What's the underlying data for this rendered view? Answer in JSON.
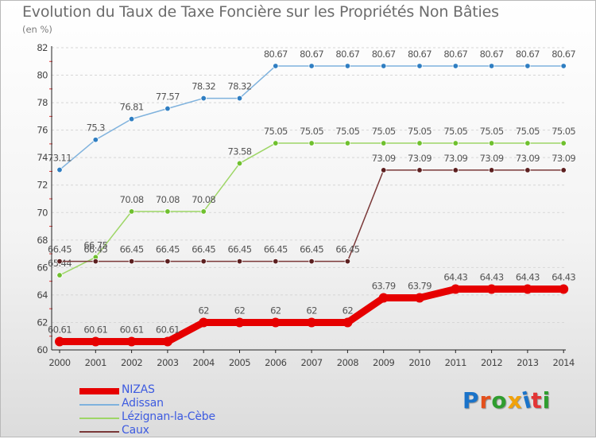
{
  "title": "Evolution du Taux de Taxe Foncière sur les Propriétés Non Bâties",
  "unit_label": "(en %)",
  "logo": {
    "text": "Proxiti",
    "letter_colors": [
      "#1a73c9",
      "#e4501c",
      "#2f9d2f",
      "#f1a20a",
      "#1a73c9",
      "#e23535",
      "#2f9d2f"
    ]
  },
  "chart_data": {
    "type": "line",
    "title": "Evolution du Taux de Taxe Foncière sur les Propriétés Non Bâties",
    "ylabel": "(en %)",
    "xlabel": "",
    "ylim": [
      60,
      82
    ],
    "yticks": [
      60,
      62,
      64,
      66,
      68,
      70,
      72,
      74,
      76,
      78,
      80,
      82
    ],
    "x": [
      "2000",
      "2001",
      "2002",
      "2003",
      "2004",
      "2005",
      "2006",
      "2007",
      "2008",
      "2009",
      "2010",
      "2011",
      "2012",
      "2013",
      "2014"
    ],
    "grid": "horizontal dashed",
    "legend_position": "bottom-left",
    "series": [
      {
        "name": "NIZAS",
        "color": "#e60000",
        "emphasis": true,
        "values": [
          60.61,
          60.61,
          60.61,
          60.61,
          62,
          62,
          62,
          62,
          62,
          63.79,
          63.79,
          64.43,
          64.43,
          64.43,
          64.43
        ],
        "labels": [
          "60.61",
          "60.61",
          "60.61",
          "60.61",
          "62",
          "62",
          "62",
          "62",
          "62",
          "63.79",
          "63.79",
          "64.43",
          "64.43",
          "64.43",
          "64.43"
        ]
      },
      {
        "name": "Adissan",
        "color": "#7fb2dd",
        "marker": "#2f7ec2",
        "values": [
          73.11,
          75.3,
          76.81,
          77.57,
          78.32,
          78.32,
          80.67,
          80.67,
          80.67,
          80.67,
          80.67,
          80.67,
          80.67,
          80.67,
          80.67
        ],
        "labels": [
          "73.11",
          "75.3",
          "76.81",
          "77.57",
          "78.32",
          "78.32",
          "80.67",
          "80.67",
          "80.67",
          "80.67",
          "80.67",
          "80.67",
          "80.67",
          "80.67",
          "80.67"
        ]
      },
      {
        "name": "Lézignan-la-Cèbe",
        "color": "#9ed667",
        "marker": "#6fc02e",
        "values": [
          65.44,
          66.75,
          70.08,
          70.08,
          70.08,
          73.58,
          75.05,
          75.05,
          75.05,
          75.05,
          75.05,
          75.05,
          75.05,
          75.05,
          75.05
        ],
        "labels": [
          "65.44",
          "66.75",
          "70.08",
          "70.08",
          "70.08",
          "73.58",
          "75.05",
          "75.05",
          "75.05",
          "75.05",
          "75.05",
          "75.05",
          "75.05",
          "75.05",
          "75.05"
        ]
      },
      {
        "name": "Caux",
        "color": "#7a3838",
        "marker": "#5c1f1f",
        "values": [
          66.45,
          66.45,
          66.45,
          66.45,
          66.45,
          66.45,
          66.45,
          66.45,
          66.45,
          73.09,
          73.09,
          73.09,
          73.09,
          73.09,
          73.09
        ],
        "labels": [
          "66.45",
          "66.45",
          "66.45",
          "66.45",
          "66.45",
          "66.45",
          "66.45",
          "66.45",
          "66.45",
          "73.09",
          "73.09",
          "73.09",
          "73.09",
          "73.09",
          "73.09"
        ]
      }
    ]
  }
}
